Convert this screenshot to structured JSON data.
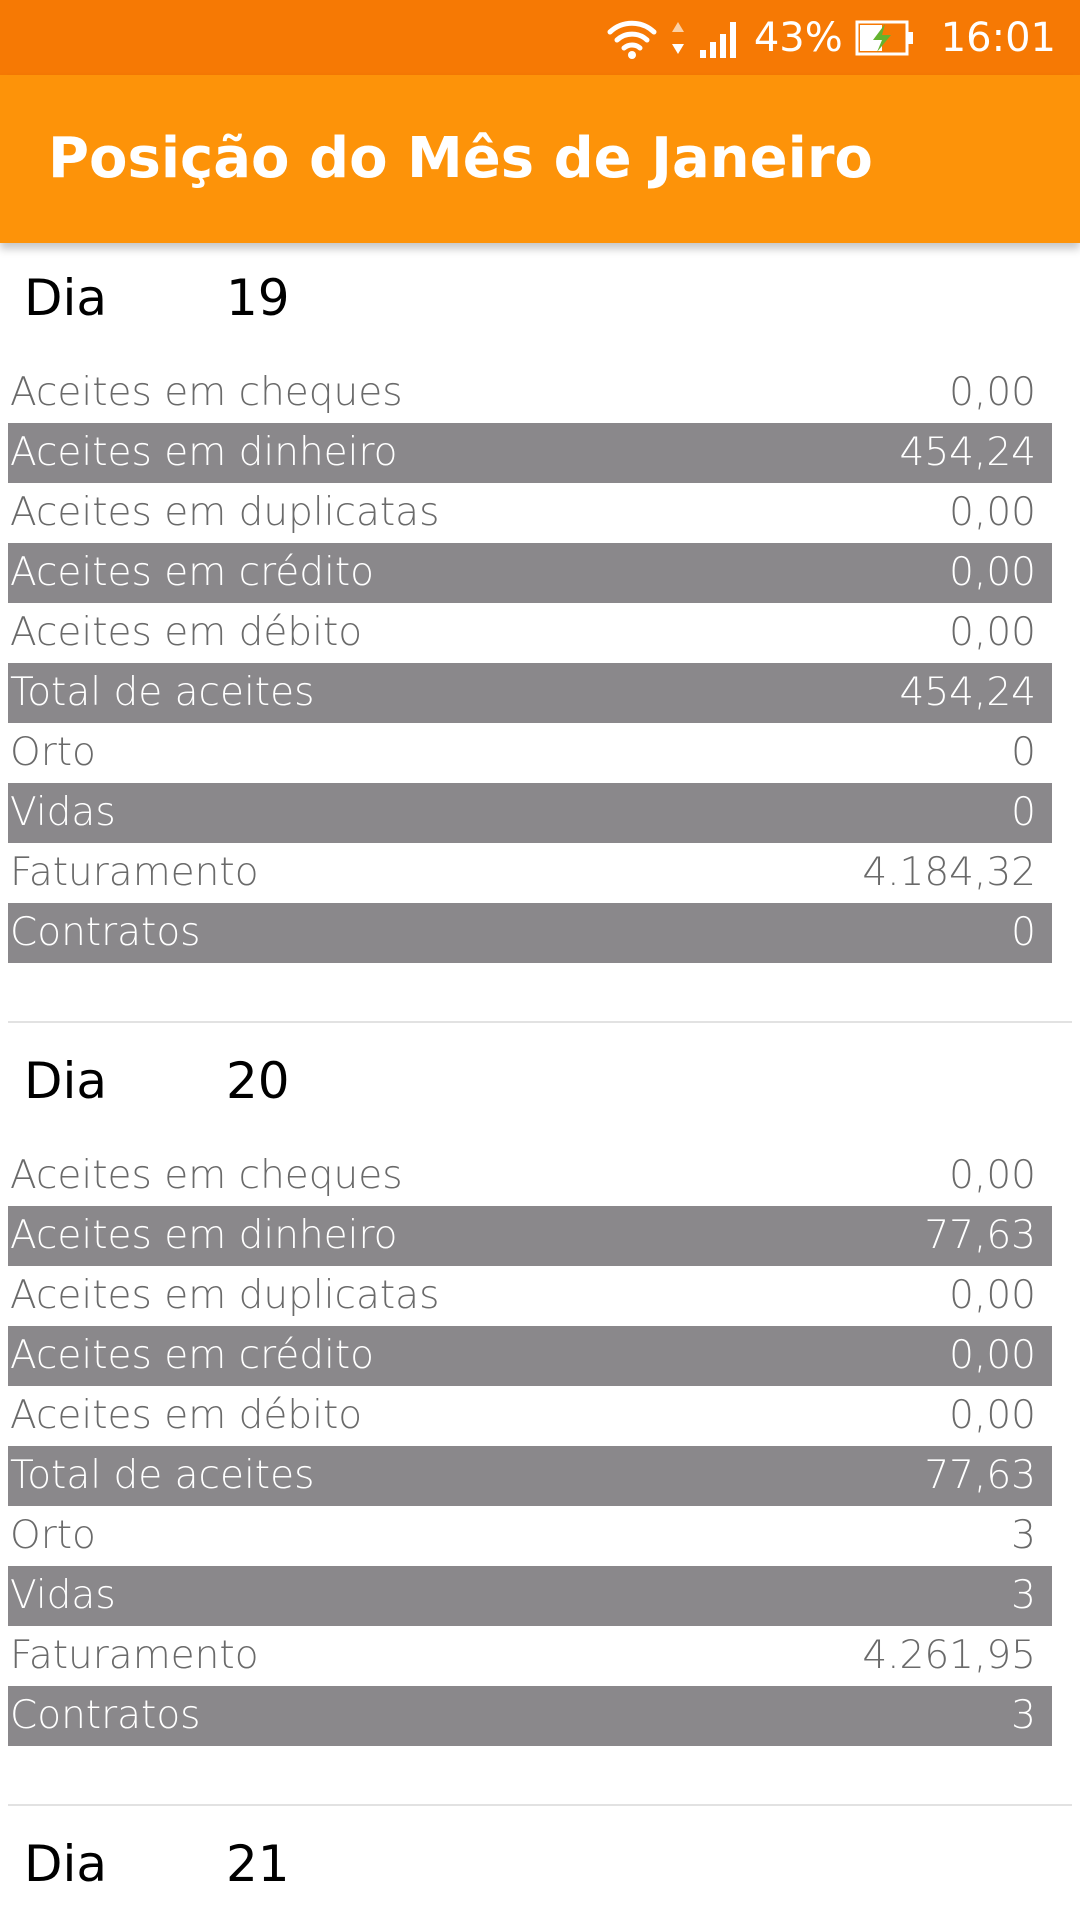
{
  "status_bar": {
    "battery_percent": "43%",
    "time": "16:01",
    "icons": [
      "wifi-icon",
      "data-arrows-icon",
      "signal-icon",
      "battery-charging-icon"
    ]
  },
  "app_bar": {
    "title": "Posição do Mês de Janeiro"
  },
  "day_label": "Dia",
  "days": [
    {
      "day": "19",
      "rows": [
        {
          "label": "Aceites em cheques",
          "value": "0,00"
        },
        {
          "label": "Aceites em dinheiro",
          "value": "454,24"
        },
        {
          "label": "Aceites em duplicatas",
          "value": "0,00"
        },
        {
          "label": "Aceites em crédito",
          "value": "0,00"
        },
        {
          "label": "Aceites em débito",
          "value": "0,00"
        },
        {
          "label": "Total de aceites",
          "value": "454,24"
        },
        {
          "label": "Orto",
          "value": "0"
        },
        {
          "label": "Vidas",
          "value": "0"
        },
        {
          "label": "Faturamento",
          "value": "4.184,32"
        },
        {
          "label": "Contratos",
          "value": "0"
        }
      ]
    },
    {
      "day": "20",
      "rows": [
        {
          "label": "Aceites em cheques",
          "value": "0,00"
        },
        {
          "label": "Aceites em dinheiro",
          "value": "77,63"
        },
        {
          "label": "Aceites em duplicatas",
          "value": "0,00"
        },
        {
          "label": "Aceites em crédito",
          "value": "0,00"
        },
        {
          "label": "Aceites em débito",
          "value": "0,00"
        },
        {
          "label": "Total de aceites",
          "value": "77,63"
        },
        {
          "label": "Orto",
          "value": "3"
        },
        {
          "label": "Vidas",
          "value": "3"
        },
        {
          "label": "Faturamento",
          "value": "4.261,95"
        },
        {
          "label": "Contratos",
          "value": "3"
        }
      ]
    },
    {
      "day": "21",
      "rows": []
    }
  ],
  "colors": {
    "status_bar": "#f67904",
    "app_bar": "#fd9309",
    "row_shade": "#8a888b",
    "row_text": "#6a6a6a"
  }
}
